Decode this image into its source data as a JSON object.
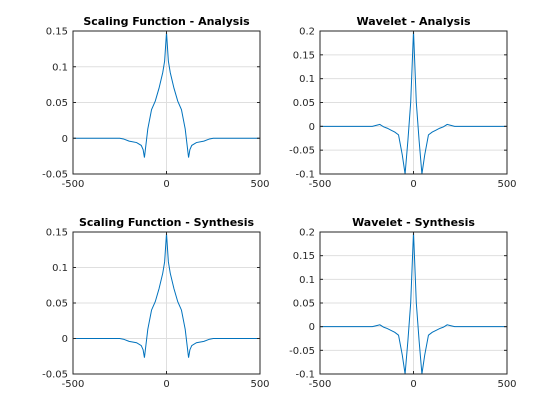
{
  "chart_data": [
    {
      "type": "line",
      "title": "Scaling Function - Analysis",
      "xlim": [
        -500,
        500
      ],
      "ylim": [
        -0.05,
        0.15
      ],
      "xticks": [
        "-500",
        "0",
        "500"
      ],
      "yticks": [
        "-0.05",
        "0",
        "0.05",
        "0.1",
        "0.15"
      ],
      "grid": true,
      "color": "#0072bd",
      "series": [
        {
          "x": [
            -500,
            -250,
            -230,
            -200,
            -160,
            -135,
            -125,
            -118,
            -100,
            -80,
            -60,
            -40,
            -20,
            -10,
            0,
            10,
            20,
            40,
            60,
            80,
            100,
            118,
            125,
            135,
            160,
            200,
            230,
            250,
            500
          ],
          "y": [
            0,
            0,
            -0.001,
            -0.004,
            -0.006,
            -0.01,
            -0.016,
            -0.027,
            0.013,
            0.04,
            0.052,
            0.07,
            0.092,
            0.108,
            0.148,
            0.108,
            0.092,
            0.07,
            0.052,
            0.04,
            0.013,
            -0.027,
            -0.016,
            -0.01,
            -0.006,
            -0.004,
            -0.001,
            0,
            0
          ]
        }
      ]
    },
    {
      "type": "line",
      "title": "Wavelet - Analysis",
      "xlim": [
        -500,
        500
      ],
      "ylim": [
        -0.1,
        0.2
      ],
      "xticks": [
        "-500",
        "0",
        "500"
      ],
      "yticks": [
        "-0.1",
        "-0.05",
        "0",
        "0.05",
        "0.1",
        "0.15",
        "0.2"
      ],
      "grid": true,
      "color": "#0072bd",
      "series": [
        {
          "x": [
            -500,
            -220,
            -200,
            -180,
            -160,
            -140,
            -120,
            -100,
            -80,
            -60,
            -45,
            -30,
            -15,
            0,
            15,
            30,
            45,
            60,
            80,
            100,
            120,
            140,
            160,
            180,
            200,
            220,
            500
          ],
          "y": [
            0,
            0,
            0.002,
            0.004,
            -0.001,
            -0.004,
            -0.008,
            -0.012,
            -0.018,
            -0.06,
            -0.1,
            -0.03,
            0.05,
            0.2,
            0.05,
            -0.03,
            -0.1,
            -0.06,
            -0.018,
            -0.012,
            -0.008,
            -0.004,
            -0.001,
            0.004,
            0.002,
            0,
            0
          ]
        }
      ]
    },
    {
      "type": "line",
      "title": "Scaling Function - Synthesis",
      "xlim": [
        -500,
        500
      ],
      "ylim": [
        -0.05,
        0.15
      ],
      "xticks": [
        "-500",
        "0",
        "500"
      ],
      "yticks": [
        "-0.05",
        "0",
        "0.05",
        "0.1",
        "0.15"
      ],
      "grid": true,
      "color": "#0072bd",
      "series": [
        {
          "x": [
            -500,
            -250,
            -230,
            -200,
            -160,
            -135,
            -125,
            -118,
            -100,
            -80,
            -60,
            -40,
            -20,
            -10,
            0,
            10,
            20,
            40,
            60,
            80,
            100,
            118,
            125,
            135,
            160,
            200,
            230,
            250,
            500
          ],
          "y": [
            0,
            0,
            -0.001,
            -0.004,
            -0.006,
            -0.01,
            -0.016,
            -0.027,
            0.013,
            0.04,
            0.052,
            0.07,
            0.092,
            0.108,
            0.148,
            0.108,
            0.092,
            0.07,
            0.052,
            0.04,
            0.013,
            -0.027,
            -0.016,
            -0.01,
            -0.006,
            -0.004,
            -0.001,
            0,
            0
          ]
        }
      ]
    },
    {
      "type": "line",
      "title": "Wavelet - Synthesis",
      "xlim": [
        -500,
        500
      ],
      "ylim": [
        -0.1,
        0.2
      ],
      "xticks": [
        "-500",
        "0",
        "500"
      ],
      "yticks": [
        "-0.1",
        "-0.05",
        "0",
        "0.05",
        "0.1",
        "0.15",
        "0.2"
      ],
      "grid": true,
      "color": "#0072bd",
      "series": [
        {
          "x": [
            -500,
            -220,
            -200,
            -180,
            -160,
            -140,
            -120,
            -100,
            -80,
            -60,
            -45,
            -30,
            -15,
            0,
            15,
            30,
            45,
            60,
            80,
            100,
            120,
            140,
            160,
            180,
            200,
            220,
            500
          ],
          "y": [
            0,
            0,
            0.002,
            0.004,
            -0.001,
            -0.004,
            -0.008,
            -0.012,
            -0.018,
            -0.06,
            -0.1,
            -0.03,
            0.05,
            0.2,
            0.05,
            -0.03,
            -0.1,
            -0.06,
            -0.018,
            -0.012,
            -0.008,
            -0.004,
            -0.001,
            0.004,
            0.002,
            0,
            0
          ]
        }
      ]
    }
  ]
}
